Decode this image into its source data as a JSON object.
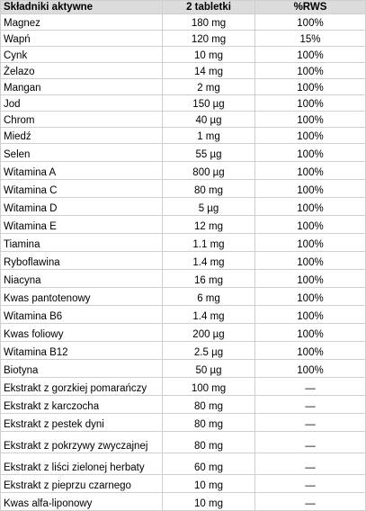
{
  "table": {
    "headers": [
      "Składniki aktywne",
      "2 tabletki",
      "%RWS"
    ],
    "rows": [
      {
        "name": "Magnez",
        "dose": "180 mg",
        "rws": "100%"
      },
      {
        "name": "Wapń",
        "dose": "120 mg",
        "rws": "15%"
      },
      {
        "name": "Cynk",
        "dose": "10 mg",
        "rws": "100%"
      },
      {
        "name": "Żelazo",
        "dose": "14 mg",
        "rws": "100%"
      },
      {
        "name": "Mangan",
        "dose": "2 mg",
        "rws": "100%"
      },
      {
        "name": "Jod",
        "dose": "150 µg",
        "rws": "100%"
      },
      {
        "name": "Chrom",
        "dose": "40 µg",
        "rws": "100%"
      },
      {
        "name": "Miedź",
        "dose": "1 mg",
        "rws": "100%"
      },
      {
        "name": "Selen",
        "dose": "55 µg",
        "rws": "100%"
      },
      {
        "name": "Witamina A",
        "dose": "800 µg",
        "rws": "100%"
      },
      {
        "name": "Witamina C",
        "dose": "80 mg",
        "rws": "100%"
      },
      {
        "name": "Witamina D",
        "dose": "5 µg",
        "rws": "100%"
      },
      {
        "name": "Witamina E",
        "dose": "12 mg",
        "rws": "100%"
      },
      {
        "name": "Tiamina",
        "dose": "1.1 mg",
        "rws": "100%"
      },
      {
        "name": "Ryboflawina",
        "dose": "1.4 mg",
        "rws": "100%"
      },
      {
        "name": "Niacyna",
        "dose": "16 mg",
        "rws": "100%"
      },
      {
        "name": "Kwas pantotenowy",
        "dose": "6 mg",
        "rws": "100%"
      },
      {
        "name": "Witamina B6",
        "dose": "1.4 mg",
        "rws": "100%"
      },
      {
        "name": "Kwas foliowy",
        "dose": "200 µg",
        "rws": "100%"
      },
      {
        "name": "Witamina B12",
        "dose": "2.5 µg",
        "rws": "100%"
      },
      {
        "name": "Biotyna",
        "dose": "50 µg",
        "rws": "100%"
      },
      {
        "name": "Ekstrakt z gorzkiej pomarańczy",
        "dose": "100 mg",
        "rws": "—"
      },
      {
        "name": "Ekstrakt z karczocha",
        "dose": "80 mg",
        "rws": "—"
      },
      {
        "name": "Ekstrakt z pestek dyni",
        "dose": "80 mg",
        "rws": "—"
      },
      {
        "name": "Ekstrakt z pokrzywy zwyczajnej",
        "dose": "80 mg",
        "rws": "—"
      },
      {
        "name": "Ekstrakt z liści zielonej herbaty",
        "dose": "60 mg",
        "rws": "—"
      },
      {
        "name": "Ekstrakt z pieprzu czarnego",
        "dose": "10 mg",
        "rws": "—"
      },
      {
        "name": "Kwas alfa-liponowy",
        "dose": "10 mg",
        "rws": "—"
      }
    ]
  },
  "colors": {
    "header_background": "#dcdcdc",
    "grid_line": "#cfcfcf",
    "text": "#000000"
  }
}
